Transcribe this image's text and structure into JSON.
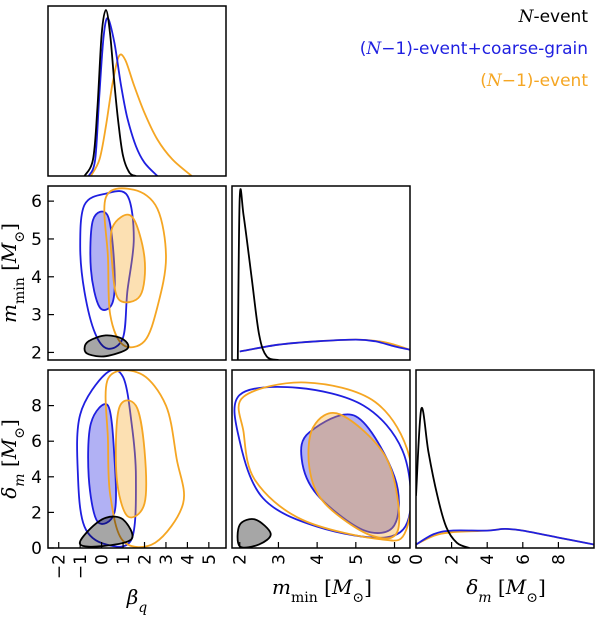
{
  "chart_data": {
    "type": "corner",
    "colors": {
      "N": "#000000",
      "N1cg": "#1f1fe0",
      "N1": "#f5a623"
    },
    "legend": [
      {
        "key": "N",
        "label": "N-event",
        "color": "#000000"
      },
      {
        "key": "N1cg",
        "label": "(N−1)-event+coarse-grain",
        "color": "#1f1fe0"
      },
      {
        "key": "N1",
        "label": "(N−1)-event",
        "color": "#f5a623"
      }
    ],
    "parameters": [
      {
        "key": "beta_q",
        "label": "β_q",
        "ticks": [
          "−2",
          "−1",
          "0",
          "1",
          "2",
          "3",
          "4",
          "5"
        ],
        "range": [
          -2.5,
          5.8
        ]
      },
      {
        "key": "m_min",
        "label": "m_min [M⊙]",
        "ticks": [
          "2",
          "3",
          "4",
          "5",
          "6"
        ],
        "range": [
          1.8,
          6.4
        ]
      },
      {
        "key": "delta_m",
        "label": "δ_m  [M⊙]",
        "ticks": [
          "0",
          "2",
          "4",
          "6",
          "8"
        ],
        "range": [
          0,
          10
        ]
      }
    ],
    "marginals": {
      "beta_q": {
        "N": [
          [
            -0.8,
            0
          ],
          [
            -0.4,
            0.1
          ],
          [
            -0.2,
            0.4
          ],
          [
            0,
            0.85
          ],
          [
            0.2,
            1.0
          ],
          [
            0.4,
            0.85
          ],
          [
            0.6,
            0.55
          ],
          [
            0.8,
            0.3
          ],
          [
            1.0,
            0.12
          ],
          [
            1.3,
            0.02
          ],
          [
            1.6,
            0
          ]
        ],
        "N1cg": [
          [
            -0.6,
            0
          ],
          [
            -0.3,
            0.1
          ],
          [
            -0.1,
            0.5
          ],
          [
            0.1,
            0.85
          ],
          [
            0.3,
            0.95
          ],
          [
            0.6,
            0.8
          ],
          [
            0.9,
            0.55
          ],
          [
            1.2,
            0.35
          ],
          [
            1.6,
            0.18
          ],
          [
            2.0,
            0.08
          ],
          [
            2.6,
            0
          ]
        ],
        "N1": [
          [
            -0.5,
            0
          ],
          [
            -0.1,
            0.1
          ],
          [
            0.2,
            0.3
          ],
          [
            0.5,
            0.55
          ],
          [
            0.8,
            0.72
          ],
          [
            1.1,
            0.7
          ],
          [
            1.5,
            0.55
          ],
          [
            2.0,
            0.38
          ],
          [
            2.6,
            0.22
          ],
          [
            3.3,
            0.1
          ],
          [
            4.2,
            0
          ]
        ]
      },
      "m_min": {
        "N": [
          [
            1.95,
            0
          ],
          [
            2.0,
            0.95
          ],
          [
            2.1,
            0.85
          ],
          [
            2.3,
            0.5
          ],
          [
            2.5,
            0.15
          ],
          [
            2.7,
            0.02
          ],
          [
            3.0,
            0
          ]
        ],
        "N1cg": [
          [
            2.0,
            0.05
          ],
          [
            3.0,
            0.09
          ],
          [
            4.0,
            0.11
          ],
          [
            5.0,
            0.12
          ],
          [
            5.5,
            0.11
          ],
          [
            6.0,
            0.08
          ],
          [
            6.4,
            0.06
          ]
        ],
        "N1": [
          [
            2.0,
            0.05
          ],
          [
            3.0,
            0.09
          ],
          [
            4.0,
            0.11
          ],
          [
            5.0,
            0.12
          ],
          [
            5.6,
            0.11
          ],
          [
            6.0,
            0.09
          ],
          [
            6.4,
            0.06
          ]
        ]
      },
      "delta_m": {
        "N": [
          [
            0,
            0.3
          ],
          [
            0.3,
            0.8
          ],
          [
            0.7,
            0.55
          ],
          [
            1.2,
            0.3
          ],
          [
            1.7,
            0.12
          ],
          [
            2.3,
            0.03
          ],
          [
            3,
            0
          ]
        ],
        "N1cg": [
          [
            0,
            0.02
          ],
          [
            1,
            0.08
          ],
          [
            2,
            0.1
          ],
          [
            4,
            0.1
          ],
          [
            5,
            0.11
          ],
          [
            6,
            0.1
          ],
          [
            8,
            0.06
          ],
          [
            10,
            0.02
          ]
        ],
        "N1": [
          [
            0,
            0.02
          ],
          [
            1,
            0.07
          ],
          [
            2,
            0.09
          ],
          [
            4,
            0.1
          ],
          [
            5,
            0.11
          ],
          [
            6,
            0.1
          ],
          [
            8,
            0.06
          ],
          [
            10,
            0.02
          ]
        ]
      }
    },
    "contours_2d": {
      "beta_q__m_min": {
        "N": {
          "outer": [
            [
              -0.6,
              1.95
            ],
            [
              0.2,
              1.9
            ],
            [
              1.2,
              2.1
            ],
            [
              1.0,
              2.35
            ],
            [
              0.2,
              2.45
            ],
            [
              -0.6,
              2.3
            ],
            [
              -0.8,
              2.1
            ]
          ]
        },
        "N1cg": {
          "outer": [
            [
              -0.8,
              5.9
            ],
            [
              0.2,
              6.2
            ],
            [
              1.2,
              6.15
            ],
            [
              1.5,
              5.0
            ],
            [
              1.2,
              3.6
            ],
            [
              1.0,
              2.4
            ],
            [
              0.3,
              2.1
            ],
            [
              -0.3,
              2.5
            ],
            [
              -0.8,
              3.6
            ],
            [
              -1.0,
              4.8
            ]
          ],
          "inner": [
            [
              -0.4,
              5.5
            ],
            [
              0.3,
              5.6
            ],
            [
              0.6,
              4.2
            ],
            [
              0.5,
              3.3
            ],
            [
              -0.1,
              3.2
            ],
            [
              -0.5,
              4.2
            ]
          ]
        },
        "N1": {
          "outer": [
            [
              0.2,
              6.1
            ],
            [
              1.5,
              6.3
            ],
            [
              2.6,
              5.8
            ],
            [
              3.0,
              4.5
            ],
            [
              2.6,
              3.2
            ],
            [
              2.0,
              2.3
            ],
            [
              1.0,
              2.2
            ],
            [
              0.4,
              3.0
            ],
            [
              0.3,
              4.5
            ]
          ],
          "inner": [
            [
              0.5,
              5.3
            ],
            [
              1.4,
              5.6
            ],
            [
              2.0,
              4.5
            ],
            [
              1.8,
              3.5
            ],
            [
              0.8,
              3.4
            ],
            [
              0.5,
              4.3
            ]
          ]
        }
      },
      "beta_q__delta_m": {
        "N": {
          "outer": [
            [
              -1.0,
              0.2
            ],
            [
              0.0,
              0.1
            ],
            [
              1.4,
              0.5
            ],
            [
              1.0,
              1.6
            ],
            [
              0.2,
              1.7
            ],
            [
              -0.6,
              1.0
            ]
          ]
        },
        "N1cg": {
          "outer": [
            [
              -1.0,
              7.5
            ],
            [
              0.2,
              9.8
            ],
            [
              1.0,
              9.6
            ],
            [
              1.4,
              7.0
            ],
            [
              1.6,
              4.0
            ],
            [
              1.4,
              0.5
            ],
            [
              0.2,
              0.2
            ],
            [
              -0.8,
              1.2
            ],
            [
              -1.1,
              4.0
            ]
          ],
          "inner": [
            [
              -0.5,
              7.0
            ],
            [
              0.3,
              8.0
            ],
            [
              0.6,
              5.0
            ],
            [
              0.6,
              2.0
            ],
            [
              -0.2,
              1.5
            ],
            [
              -0.6,
              4.0
            ]
          ]
        },
        "N1": {
          "outer": [
            [
              0.3,
              9.5
            ],
            [
              1.8,
              9.8
            ],
            [
              3.0,
              8.0
            ],
            [
              3.5,
              5.0
            ],
            [
              3.8,
              2.5
            ],
            [
              2.5,
              0.3
            ],
            [
              1.0,
              0.4
            ],
            [
              0.4,
              3.0
            ],
            [
              0.3,
              6.0
            ]
          ],
          "inner": [
            [
              0.8,
              7.8
            ],
            [
              1.6,
              8.0
            ],
            [
              2.0,
              5.5
            ],
            [
              2.0,
              2.5
            ],
            [
              1.2,
              1.8
            ],
            [
              0.7,
              4.0
            ]
          ]
        }
      },
      "m_min__delta_m": {
        "N": {
          "outer": [
            [
              2.0,
              0.1
            ],
            [
              2.5,
              0.2
            ],
            [
              2.8,
              0.8
            ],
            [
              2.4,
              1.6
            ],
            [
              2.0,
              1.3
            ]
          ]
        },
        "N1cg": {
          "outer": [
            [
              2.0,
              8.6
            ],
            [
              3.5,
              9.0
            ],
            [
              5.2,
              8.0
            ],
            [
              6.2,
              5.5
            ],
            [
              6.4,
              2.0
            ],
            [
              5.8,
              0.6
            ],
            [
              4.0,
              1.2
            ],
            [
              2.6,
              2.8
            ],
            [
              2.0,
              6.0
            ]
          ],
          "inner": [
            [
              3.8,
              6.5
            ],
            [
              5.0,
              7.4
            ],
            [
              6.0,
              4.0
            ],
            [
              6.0,
              1.3
            ],
            [
              5.2,
              1.0
            ],
            [
              4.0,
              3.0
            ],
            [
              3.6,
              5.0
            ]
          ]
        },
        "N1": {
          "outer": [
            [
              2.1,
              8.5
            ],
            [
              3.7,
              9.3
            ],
            [
              5.5,
              8.2
            ],
            [
              6.4,
              5.0
            ],
            [
              6.3,
              1.0
            ],
            [
              5.6,
              0.5
            ],
            [
              3.6,
              1.6
            ],
            [
              2.4,
              3.8
            ],
            [
              2.1,
              6.5
            ]
          ],
          "inner": [
            [
              3.9,
              6.8
            ],
            [
              4.6,
              7.5
            ],
            [
              5.8,
              5.0
            ],
            [
              6.1,
              1.1
            ],
            [
              5.4,
              0.7
            ],
            [
              4.2,
              2.5
            ],
            [
              3.8,
              4.5
            ]
          ]
        }
      }
    }
  }
}
